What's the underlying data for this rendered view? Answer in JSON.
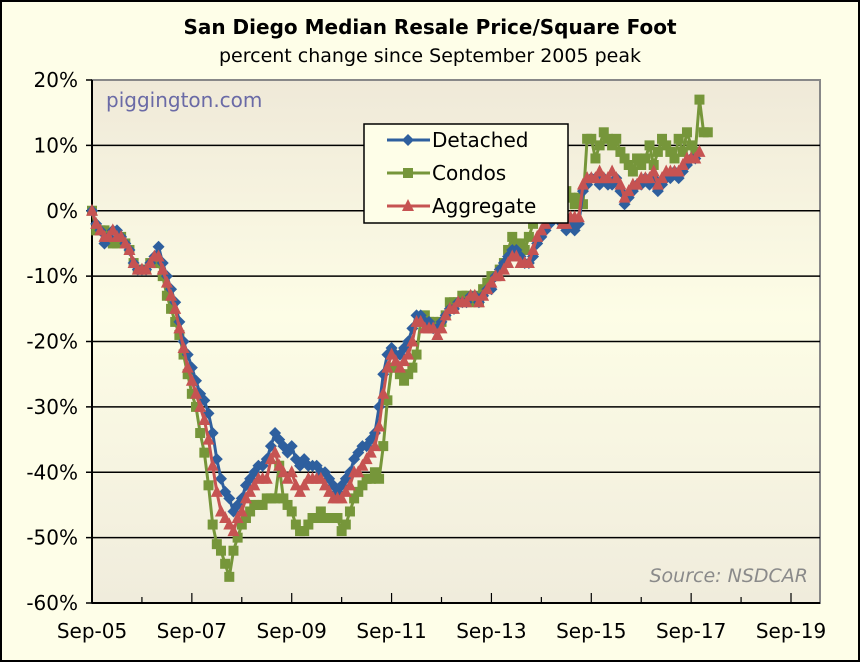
{
  "chart_data": {
    "type": "line",
    "title": "San Diego Median Resale Price/Square Foot",
    "subtitle": "percent change since September 2005 peak",
    "watermark": "piggington.com",
    "source": "Source: NSDCAR",
    "xlabel": "",
    "ylabel": "",
    "ylim": [
      -60,
      20
    ],
    "yticks": [
      20,
      10,
      0,
      -10,
      -20,
      -30,
      -40,
      -50,
      -60
    ],
    "ytick_labels": [
      "20%",
      "10%",
      "0%",
      "-10%",
      "-20%",
      "-30%",
      "-40%",
      "-50%",
      "-60%"
    ],
    "xtick_labels": [
      "Sep-05",
      "Sep-07",
      "Sep-09",
      "Sep-11",
      "Sep-13",
      "Sep-15",
      "Sep-17",
      "Sep-19"
    ],
    "x_start": "Sep-05",
    "x_unit": "months since Sep-05",
    "grid": true,
    "legend_position": "top-center",
    "colors": {
      "Detached": "#2e5f9e",
      "Condos": "#76963a",
      "Aggregate": "#c65352"
    },
    "series": [
      {
        "name": "Detached",
        "marker": "diamond",
        "values": [
          0,
          -2,
          -3,
          -5,
          -4,
          -3,
          -3,
          -4,
          -5,
          -6,
          -8,
          -9,
          -9,
          -9,
          -8,
          -7,
          -5.5,
          -8,
          -10,
          -12,
          -14,
          -17,
          -20,
          -22,
          -24,
          -26,
          -28,
          -29,
          -31,
          -34,
          -38,
          -41,
          -43,
          -44,
          -46,
          -45,
          -44,
          -42,
          -41,
          -40,
          -39,
          -39,
          -38,
          -36,
          -34,
          -35,
          -36,
          -37,
          -36,
          -38,
          -39,
          -38,
          -39,
          -39,
          -39,
          -40,
          -40,
          -41,
          -42,
          -43,
          -42,
          -41,
          -40,
          -38,
          -37,
          -36,
          -36,
          -35,
          -34,
          -30,
          -25,
          -22,
          -21,
          -22,
          -22,
          -21,
          -20,
          -18,
          -16,
          -16,
          -17,
          -17,
          -18,
          -18,
          -17,
          -16,
          -15,
          -15,
          -14,
          -14,
          -14,
          -13,
          -13,
          -14,
          -13,
          -12,
          -12,
          -10,
          -9,
          -8,
          -7,
          -6,
          -6,
          -7,
          -8,
          -8,
          -7,
          -5,
          -4,
          -3,
          -2,
          -1,
          -1,
          -2,
          -3,
          -2,
          -3,
          -2,
          3,
          4,
          5,
          5,
          4,
          5,
          4,
          4,
          5,
          3,
          1,
          2,
          3,
          4,
          4,
          5,
          4,
          5,
          3,
          4,
          5,
          5,
          6,
          5,
          6,
          7,
          8,
          8
        ]
      },
      {
        "name": "Condos",
        "marker": "square",
        "values": [
          0,
          -3,
          -3,
          -3,
          -4,
          -5,
          -5,
          -4,
          -5,
          -6,
          -8,
          -9,
          -9,
          -9,
          -8,
          -8,
          -8,
          -10,
          -13,
          -15,
          -17,
          -19,
          -22,
          -25,
          -28,
          -30,
          -34,
          -37,
          -42,
          -48,
          -51,
          -52,
          -54,
          -56,
          -52,
          -50,
          -48,
          -47,
          -46,
          -45,
          -45,
          -45,
          -44,
          -44,
          -44,
          -39,
          -44,
          -45,
          -46,
          -48,
          -49,
          -49,
          -48,
          -47,
          -47,
          -46,
          -47,
          -47,
          -47,
          -47,
          -49,
          -48,
          -46,
          -44,
          -43,
          -42,
          -41,
          -41,
          -40,
          -41,
          -36,
          -29,
          -24,
          -24,
          -25,
          -26,
          -25,
          -24,
          -22,
          -17,
          -16,
          -17,
          -17,
          -18,
          -17,
          -16,
          -14,
          -14,
          -14,
          -13,
          -13,
          -14,
          -13,
          -14,
          -12,
          -11,
          -10,
          -10,
          -9,
          -8,
          -6,
          -4,
          -5,
          -5,
          -6,
          -4,
          -2,
          -1,
          1,
          2,
          0,
          1,
          2,
          3,
          3,
          2,
          1,
          2,
          1,
          11,
          11,
          8,
          10,
          12,
          11,
          10,
          11,
          9,
          8,
          7,
          6,
          8,
          7,
          8,
          10,
          7,
          9,
          11,
          10,
          9,
          8,
          11,
          9,
          12,
          10,
          9,
          17,
          12,
          12
        ]
      },
      {
        "name": "Aggregate",
        "marker": "triangle",
        "values": [
          0,
          -2,
          -3,
          -4,
          -4,
          -3,
          -4,
          -4,
          -5,
          -6,
          -8,
          -9,
          -9,
          -9,
          -8,
          -7,
          -7,
          -9,
          -11,
          -13,
          -15,
          -18,
          -21,
          -24,
          -26,
          -28,
          -30,
          -32,
          -35,
          -39,
          -43,
          -46,
          -47,
          -48,
          -49,
          -47,
          -46,
          -44,
          -43,
          -42,
          -41,
          -41,
          -41,
          -38,
          -37,
          -39,
          -40,
          -41,
          -40,
          -42,
          -43,
          -42,
          -41,
          -41,
          -41,
          -41,
          -42,
          -43,
          -44,
          -44,
          -44,
          -43,
          -42,
          -40,
          -40,
          -39,
          -38,
          -37,
          -36,
          -33,
          -28,
          -24,
          -22,
          -23,
          -24,
          -23,
          -22,
          -20,
          -17,
          -17,
          -18,
          -18,
          -18,
          -19,
          -18,
          -16,
          -15,
          -15,
          -14,
          -14,
          -14,
          -13,
          -13,
          -14,
          -13,
          -12,
          -11,
          -10,
          -10,
          -9,
          -8,
          -7,
          -7,
          -8,
          -8,
          -8,
          -6,
          -4,
          -3,
          -2,
          -1,
          -1,
          -1,
          -2,
          -2,
          -1,
          -1,
          -1,
          4,
          5,
          5,
          5,
          6,
          5,
          5,
          6,
          5,
          4,
          2,
          3,
          4,
          4,
          5,
          5,
          5,
          6,
          4,
          5,
          6,
          6,
          6,
          6,
          7,
          8,
          8,
          8,
          9
        ]
      }
    ]
  },
  "legend": {
    "items": [
      "Detached",
      "Condos",
      "Aggregate"
    ]
  }
}
